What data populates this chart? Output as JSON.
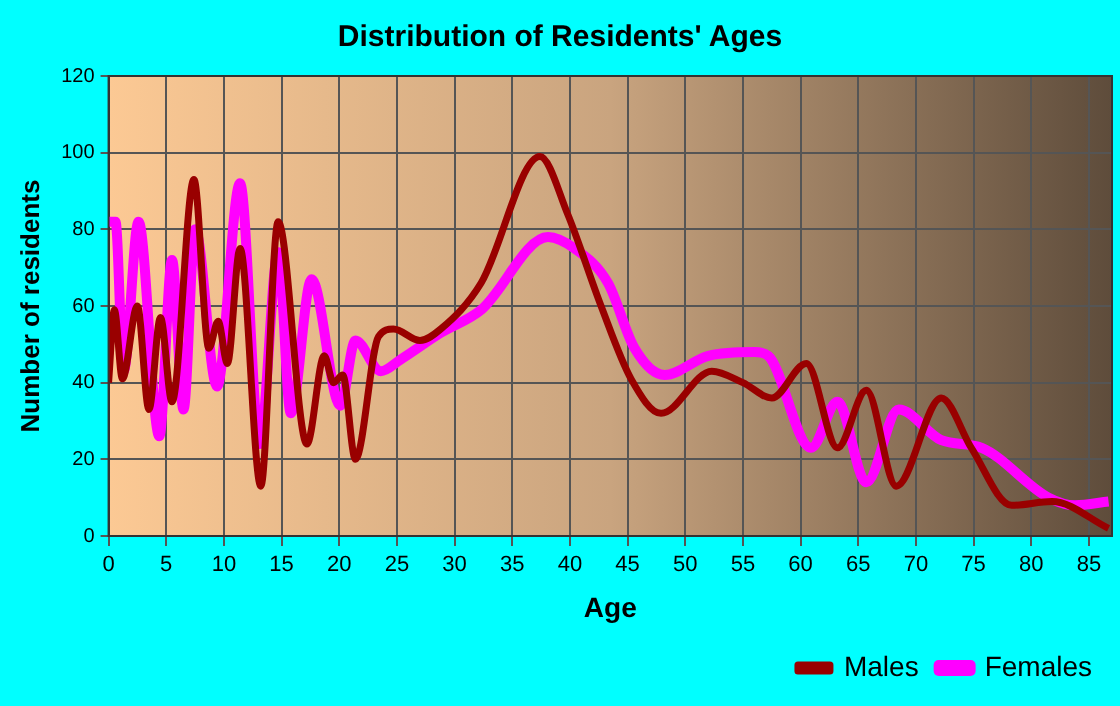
{
  "chart_data": {
    "type": "line",
    "title": "Distribution of Residents' Ages",
    "xlabel": "Age",
    "ylabel": "Number of residents",
    "xlim": [
      0,
      87
    ],
    "xticks": [
      0,
      5,
      10,
      15,
      20,
      25,
      30,
      35,
      40,
      45,
      50,
      55,
      60,
      65,
      70,
      75,
      80,
      85
    ],
    "ylim": [
      0,
      120
    ],
    "yticks": [
      0,
      20,
      40,
      60,
      80,
      100,
      120
    ],
    "grid": true,
    "legend": "bottom right",
    "marker": "none",
    "line_style": "solid",
    "series": [
      {
        "name": "Males",
        "color": "#990000",
        "x": [
          0,
          0.5,
          1.2,
          2.5,
          3.5,
          4.5,
          5.5,
          7.4,
          8.7,
          9.5,
          10.3,
          11.4,
          13.2,
          14.7,
          17.2,
          18.7,
          19.5,
          20.3,
          21.4,
          23.4,
          24.7,
          27,
          28.8,
          32.3,
          37.4,
          39.8,
          42.7,
          45.3,
          47.9,
          52.3,
          55,
          57.5,
          60.5,
          63.2,
          65.7,
          68.3,
          72.2,
          74.8,
          78.3,
          81.8,
          86.7
        ],
        "values": [
          40,
          59,
          41,
          60,
          33,
          57,
          35,
          93,
          49,
          56,
          45,
          75,
          13,
          82,
          24,
          47,
          40,
          42,
          20,
          52,
          54,
          51,
          54,
          66,
          99,
          84,
          60,
          41,
          32,
          43,
          40,
          36,
          45,
          23,
          38,
          13,
          36,
          23,
          8,
          9,
          2
        ]
      },
      {
        "name": "Females",
        "color": "#ff00ff",
        "x": [
          0,
          0.6,
          1.3,
          2.6,
          4.4,
          5.5,
          6.5,
          7.5,
          9.4,
          11.4,
          13.1,
          14.7,
          15.8,
          17.6,
          20.1,
          21.4,
          23.6,
          25.3,
          28.8,
          32.3,
          38.1,
          40.4,
          43.3,
          45.6,
          48.2,
          52,
          56,
          57.2,
          60.9,
          63.2,
          65.7,
          68.5,
          72.2,
          75.7,
          81.5,
          83.8,
          86.7
        ],
        "values": [
          82,
          82,
          43,
          82,
          26,
          72,
          33,
          80,
          39,
          92,
          24,
          74,
          32,
          67,
          34,
          51,
          43,
          46,
          53,
          59,
          78,
          75,
          66,
          49,
          42,
          47,
          48,
          47,
          23,
          35,
          14,
          33,
          25,
          23,
          10,
          8,
          9
        ]
      }
    ]
  }
}
